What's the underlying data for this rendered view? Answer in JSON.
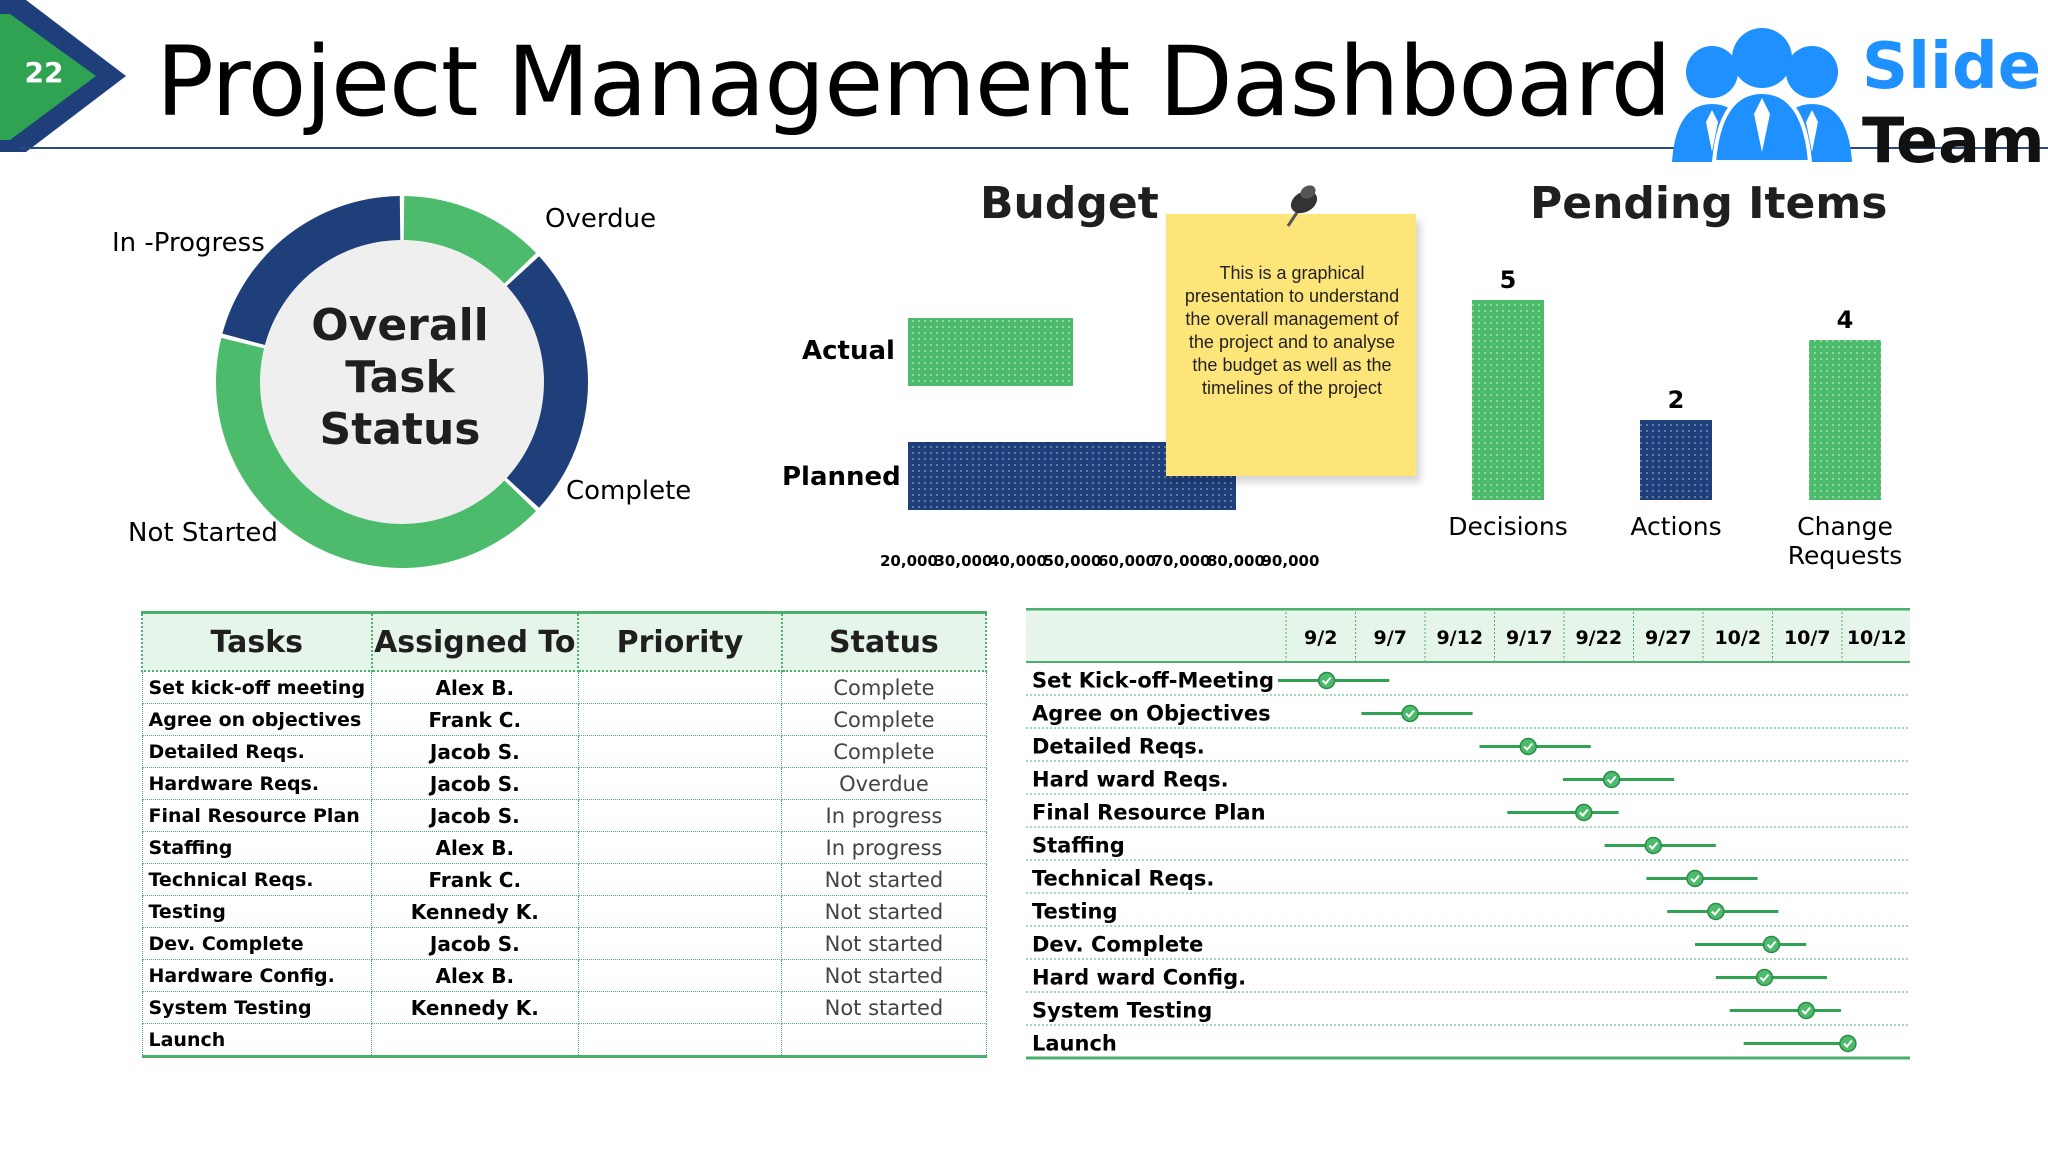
{
  "header": {
    "page_number": "22",
    "title": "Project Management Dashboard",
    "logo_word1": "Slide",
    "logo_word2": "Team"
  },
  "colors": {
    "green": "#4cbb6c",
    "navy": "#1f3f7a",
    "note": "#fde57a"
  },
  "task_status": {
    "center_line1": "Overall",
    "center_line2": "Task",
    "center_line3": "Status",
    "labels": {
      "overdue": "Overdue",
      "complete": "Complete",
      "not_started": "Not Started",
      "in_progress": "In -Progress"
    }
  },
  "note_text": "This is a graphical presentation to understand the overall management of the project and to analyse the budget as well as the timelines of the project",
  "chart_data": [
    {
      "type": "pie",
      "slices": [
        {
          "label": "Overdue",
          "value": 13,
          "color": "#4cbb6c"
        },
        {
          "label": "Complete",
          "value": 24,
          "color": "#1f3f7a"
        },
        {
          "label": "Not Started",
          "value": 42,
          "color": "#4cbb6c"
        },
        {
          "label": "In -Progress",
          "value": 21,
          "color": "#1f3f7a"
        }
      ]
    },
    {
      "type": "bar",
      "title": "Budget",
      "orientation": "horizontal",
      "categories": [
        "Actual",
        "Planned"
      ],
      "values": [
        50000,
        80000
      ],
      "xlim": [
        20000,
        90000
      ],
      "ticks": [
        "20,000",
        "30,000",
        "40,000",
        "50,000",
        "60,000",
        "70,000",
        "80,000",
        "90,000"
      ],
      "colors": [
        "#4cbb6c",
        "#1f3f7a"
      ]
    },
    {
      "type": "bar",
      "title": "Pending Items",
      "categories": [
        "Decisions",
        "Actions",
        "Change\nRequests"
      ],
      "values": [
        5,
        2,
        4
      ],
      "colors": [
        "#4cbb6c",
        "#1f3f7a",
        "#4cbb6c"
      ]
    }
  ],
  "tasks_table": {
    "headers": [
      "Tasks",
      "Assigned To",
      "Priority",
      "Status"
    ],
    "rows": [
      [
        "Set kick-off meeting",
        "Alex B.",
        "",
        "Complete"
      ],
      [
        "Agree on objectives",
        "Frank C.",
        "",
        "Complete"
      ],
      [
        "Detailed Reqs.",
        "Jacob S.",
        "",
        "Complete"
      ],
      [
        "Hardware Reqs.",
        "Jacob S.",
        "",
        "Overdue"
      ],
      [
        "Final Resource Plan",
        "Jacob S.",
        "",
        "In progress"
      ],
      [
        "Staffing",
        "Alex B.",
        "",
        "In progress"
      ],
      [
        "Technical Reqs.",
        "Frank C.",
        "",
        "Not started"
      ],
      [
        "Testing",
        "Kennedy K.",
        "",
        "Not started"
      ],
      [
        "Dev. Complete",
        "Jacob S.",
        "",
        "Not started"
      ],
      [
        "Hardware Config.",
        "Alex B.",
        "",
        "Not started"
      ],
      [
        "System Testing",
        "Kennedy K.",
        "",
        "Not started"
      ],
      [
        "Launch",
        "",
        "",
        ""
      ]
    ]
  },
  "timeline": {
    "dates": [
      "9/2",
      "9/7",
      "9/12",
      "9/17",
      "9/22",
      "9/27",
      "10/2",
      "10/7",
      "10/12"
    ],
    "rows": [
      {
        "label": "Set Kick-off-Meeting",
        "start": 0.0,
        "end": 1.6,
        "mark": 0.7
      },
      {
        "label": "Agree on Objectives",
        "start": 1.2,
        "end": 2.8,
        "mark": 1.9
      },
      {
        "label": "Detailed Reqs.",
        "start": 2.9,
        "end": 4.5,
        "mark": 3.6
      },
      {
        "label": "Hard ward Reqs.",
        "start": 4.1,
        "end": 5.7,
        "mark": 4.8
      },
      {
        "label": "Final Resource Plan",
        "start": 3.3,
        "end": 4.9,
        "mark": 4.4
      },
      {
        "label": "Staffing",
        "start": 4.7,
        "end": 6.3,
        "mark": 5.4
      },
      {
        "label": "Technical Reqs.",
        "start": 5.3,
        "end": 6.9,
        "mark": 6.0
      },
      {
        "label": "Testing",
        "start": 5.6,
        "end": 7.2,
        "mark": 6.3
      },
      {
        "label": "Dev. Complete",
        "start": 6.0,
        "end": 7.6,
        "mark": 7.1
      },
      {
        "label": "Hard ward Config.",
        "start": 6.3,
        "end": 7.9,
        "mark": 7.0
      },
      {
        "label": "System Testing",
        "start": 6.5,
        "end": 8.1,
        "mark": 7.6
      },
      {
        "label": "Launch",
        "start": 6.7,
        "end": 8.3,
        "mark": 8.2
      }
    ]
  }
}
